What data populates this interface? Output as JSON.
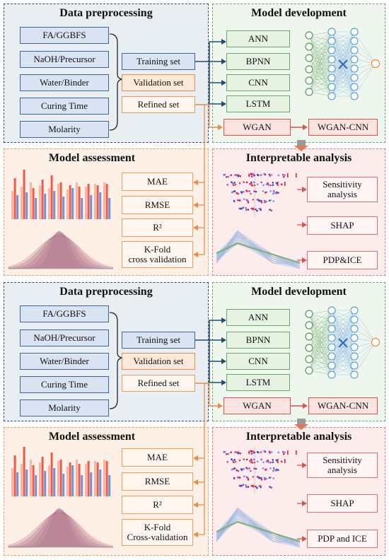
{
  "halves": [
    {
      "prep": {
        "title": "Data preprocessing",
        "features": [
          "FA/GGBFS",
          "NaOH/Precursor",
          "Water/Binder",
          "Curing Time",
          "Molarity"
        ],
        "training": "Training set",
        "validation": "Validation set",
        "refined": "Refined set"
      },
      "dev": {
        "title": "Model development",
        "models": [
          "ANN",
          "BPNN",
          "CNN",
          "LSTM"
        ],
        "wgan": "WGAN",
        "wgan_cnn": "WGAN-CNN"
      },
      "assess": {
        "title": "Model assessment",
        "metrics": [
          "MAE",
          "RMSE",
          "R²",
          "K-Fold\ncross validation"
        ]
      },
      "interp": {
        "title": "Interpretable analysis",
        "methods": [
          "Sensitivity\nanalysis",
          "SHAP",
          "PDP&ICE"
        ]
      }
    },
    {
      "prep": {
        "title": "Data preprocessing",
        "features": [
          "FA/GGBFS",
          "NaOH/Precursor",
          "Water/Binder",
          "Curing Time",
          "Molarity"
        ],
        "training": "Training set",
        "validation": "Validation set",
        "refined": "Refined set"
      },
      "dev": {
        "title": "Model development",
        "models": [
          "ANN",
          "BPNN",
          "CNN",
          "LSTM"
        ],
        "wgan": "WGAN",
        "wgan_cnn": "WGAN-CNN"
      },
      "assess": {
        "title": "Model assessment",
        "metrics": [
          "MAE",
          "RMSE",
          "R²",
          "K-Fold\nCross-validation"
        ]
      },
      "interp": {
        "title": "Interpretable analysis",
        "methods": [
          "Sensitivity\nanalysis",
          "SHAP",
          "PDP and ICE"
        ]
      }
    }
  ],
  "colors": {
    "prep_border": "#2e4f74",
    "dev_border": "#6aa36a",
    "assess_border": "#ee9a5a",
    "interp_border": "#e07a7a",
    "bar_red": "#ef5b48",
    "bar_blue": "#6f93d9",
    "neuron": "#5aa2d8",
    "output_neuron": "#f08a3a"
  }
}
